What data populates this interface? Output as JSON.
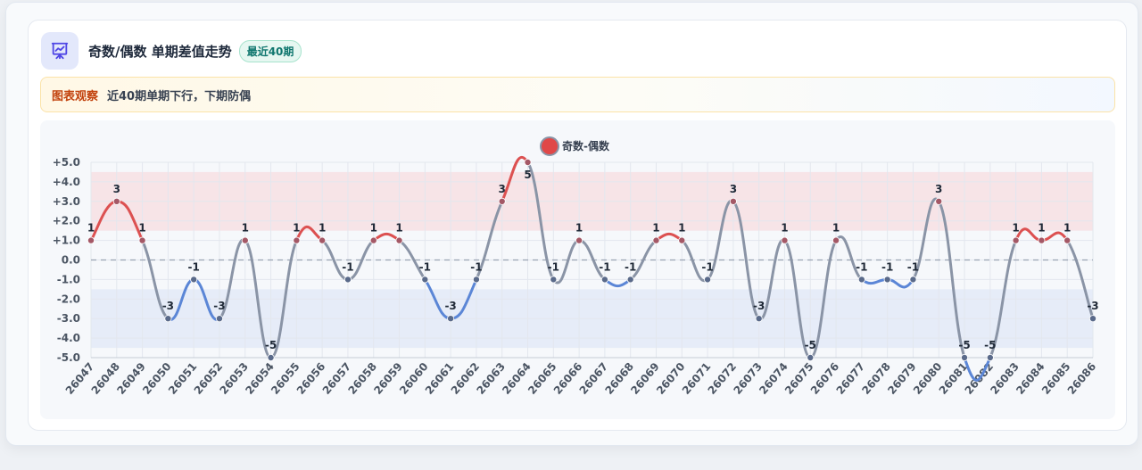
{
  "header": {
    "icon": "chart-presentation-icon",
    "title": "奇数/偶数 单期差值走势",
    "badge": "最近40期"
  },
  "observation": {
    "label": "图表观察",
    "text": "近40期单期下行，下期防偶"
  },
  "colors": {
    "positive": "#dc5151",
    "negative": "#5b86d6",
    "transition": "#8a94a6",
    "legend_dot": "#e04848",
    "band_positive": "#f7dfe2",
    "band_negative": "#e2e9f8"
  },
  "chart_data": {
    "type": "line",
    "legend_position": "top-center",
    "series": [
      {
        "name": "奇数-偶数",
        "values": [
          1,
          3,
          1,
          -3,
          -1,
          -3,
          1,
          -5,
          1,
          1,
          -1,
          1,
          1,
          -1,
          -3,
          -1,
          3,
          5,
          -1,
          1,
          -1,
          -1,
          1,
          1,
          -1,
          3,
          -3,
          1,
          -5,
          1,
          -1,
          -1,
          -1,
          3,
          -5,
          -5,
          1,
          1,
          1,
          -3
        ]
      }
    ],
    "x": [
      "26047",
      "26048",
      "26049",
      "26050",
      "26051",
      "26052",
      "26053",
      "26054",
      "26055",
      "26056",
      "26057",
      "26058",
      "26059",
      "26060",
      "26061",
      "26062",
      "26063",
      "26064",
      "26065",
      "26066",
      "26067",
      "26068",
      "26069",
      "26070",
      "26071",
      "26072",
      "26073",
      "26074",
      "26075",
      "26076",
      "26077",
      "26078",
      "26079",
      "26080",
      "26081",
      "26082",
      "26083",
      "26084",
      "26085",
      "26086"
    ],
    "y_ticks": [
      "+5.0",
      "+4.0",
      "+3.0",
      "+2.0",
      "+1.0",
      "0.0",
      "-1.0",
      "-2.0",
      "-3.0",
      "-4.0",
      "-5.0"
    ],
    "ylim": [
      -5,
      5
    ],
    "bands": [
      {
        "from": 1.5,
        "to": 4.5,
        "tone": "positive"
      },
      {
        "from": -4.5,
        "to": -1.5,
        "tone": "negative"
      }
    ],
    "zero_line": true,
    "grid": true
  }
}
